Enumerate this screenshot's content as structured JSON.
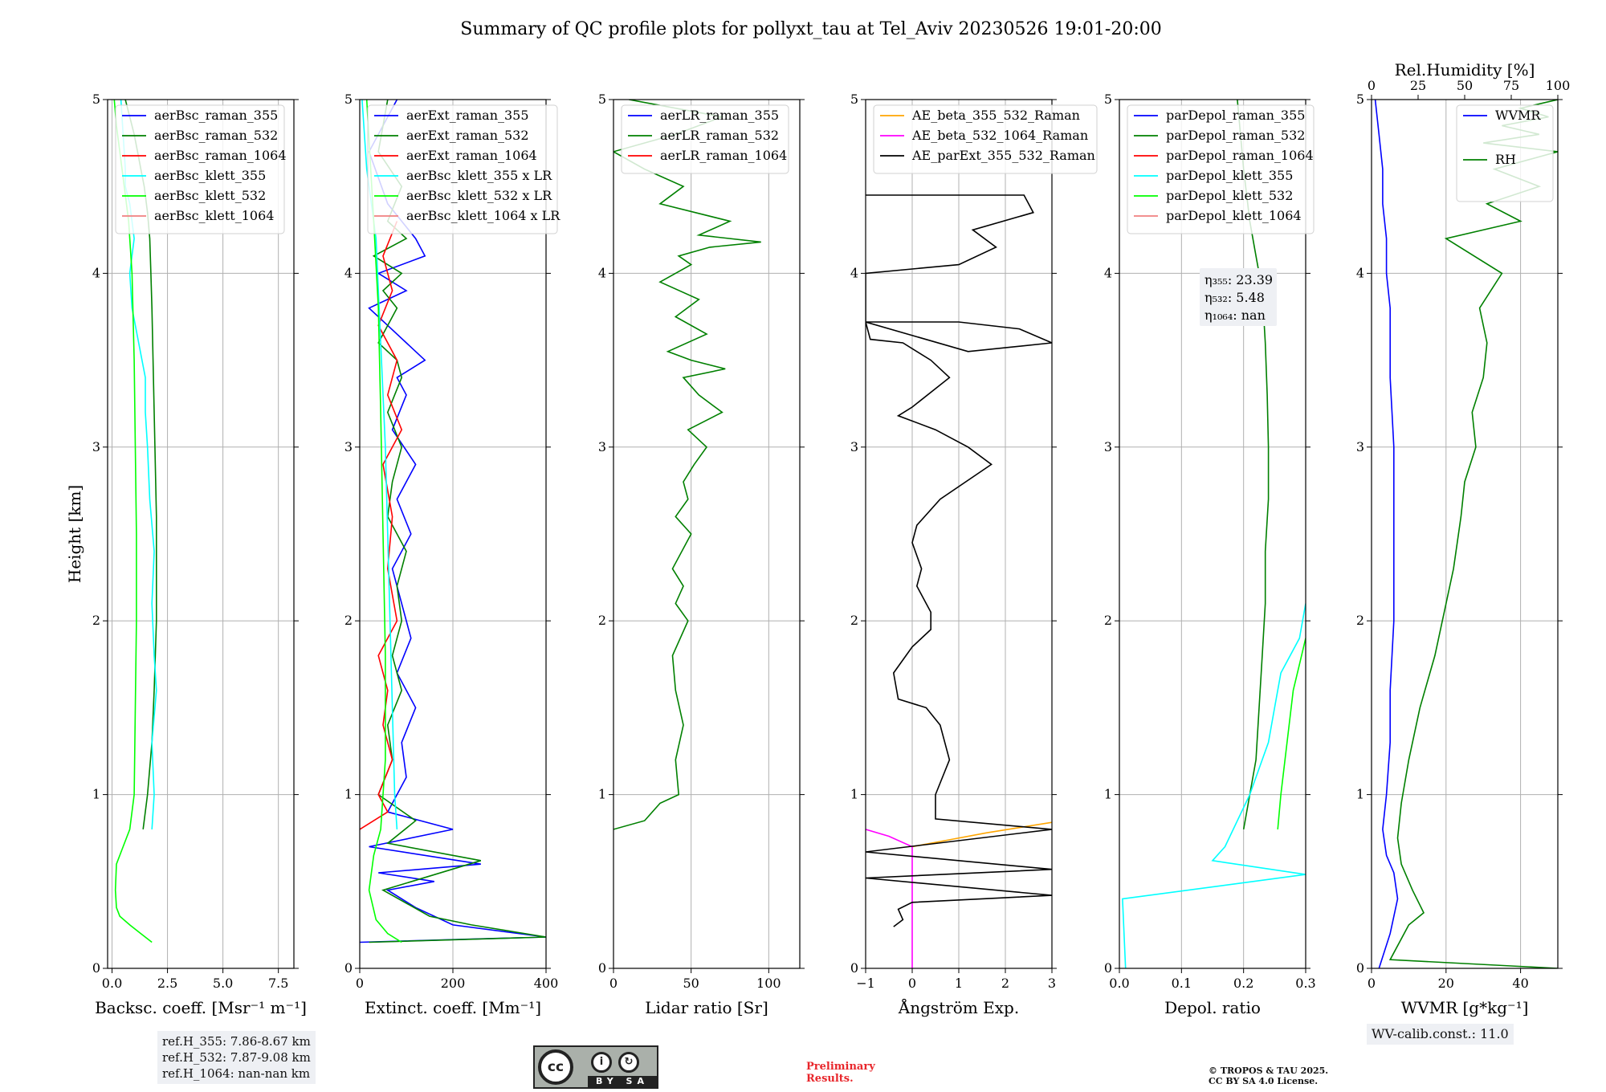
{
  "title": "Summary of QC profile plots for pollyxt_tau at Tel_Aviv 20230526 19:01-20:00",
  "chart_data": [
    {
      "type": "line",
      "name": "backscatter",
      "xlabel": "Backsc. coeff. [Msr⁻¹ m⁻¹]",
      "ylabel": "Height [km]",
      "xlim": [
        -0.2,
        8.2
      ],
      "ylim": [
        0,
        5
      ],
      "xticks": [
        0,
        2.5,
        5.0,
        7.5
      ],
      "xtick_labels": [
        "0.0",
        "2.5",
        "5.0",
        "7.5"
      ],
      "yticks": [
        0,
        1,
        2,
        3,
        4,
        5
      ],
      "grid": true,
      "legend_position": "top",
      "series": [
        {
          "name": "aerBsc_raman_355",
          "color": "#0000ff",
          "x": [],
          "y": []
        },
        {
          "name": "aerBsc_raman_532",
          "color": "#008000",
          "x": [
            1.4,
            1.6,
            1.8,
            1.9,
            2.0,
            2.0,
            2.0,
            1.95,
            1.9,
            1.85,
            1.8,
            1.75,
            1.7,
            1.6,
            1.45,
            1.3,
            1.15,
            1.0,
            0.8,
            0.6
          ],
          "y": [
            0.8,
            1.0,
            1.3,
            1.6,
            2.0,
            2.3,
            2.6,
            2.9,
            3.2,
            3.5,
            3.8,
            4.0,
            4.2,
            4.35,
            4.5,
            4.6,
            4.7,
            4.8,
            4.9,
            5.0
          ]
        },
        {
          "name": "aerBsc_raman_1064",
          "color": "#ff0000",
          "x": [],
          "y": []
        },
        {
          "name": "aerBsc_klett_355",
          "color": "#00ffff",
          "x": [
            1.8,
            1.9,
            1.8,
            2.0,
            1.9,
            1.8,
            1.9,
            1.7,
            1.6,
            1.5,
            1.5,
            1.2,
            0.9,
            0.8,
            1.0,
            0.8,
            0.6,
            0.6,
            0.5,
            0.4
          ],
          "y": [
            0.8,
            1.0,
            1.3,
            1.6,
            1.8,
            2.1,
            2.4,
            2.7,
            3.0,
            3.2,
            3.4,
            3.6,
            3.8,
            4.0,
            4.2,
            4.4,
            4.5,
            4.6,
            4.8,
            5.0
          ]
        },
        {
          "name": "aerBsc_klett_532",
          "color": "#00ff00",
          "x": [
            1.8,
            1.3,
            0.8,
            0.35,
            0.2,
            0.15,
            0.2,
            0.5,
            0.8,
            1.0,
            1.05,
            1.1,
            1.1,
            1.05,
            1.0,
            0.9,
            0.75,
            0.55,
            0.35,
            0.2,
            0.1
          ],
          "y": [
            0.15,
            0.2,
            0.25,
            0.3,
            0.35,
            0.45,
            0.6,
            0.7,
            0.8,
            1.0,
            1.5,
            2.0,
            2.5,
            3.0,
            3.5,
            4.0,
            4.3,
            4.5,
            4.7,
            4.85,
            5.0
          ]
        },
        {
          "name": "aerBsc_klett_1064",
          "color": "#f08080",
          "x": [],
          "y": []
        }
      ]
    },
    {
      "type": "line",
      "name": "extinction",
      "xlabel": "Extinct. coeff. [Mm⁻¹]",
      "xlim": [
        0,
        400
      ],
      "ylim": [
        0,
        5
      ],
      "xticks": [
        0,
        200,
        400
      ],
      "xtick_labels": [
        "0",
        "200",
        "400"
      ],
      "yticks": [
        0,
        1,
        2,
        3,
        4,
        5
      ],
      "grid": true,
      "legend_position": "top",
      "series": [
        {
          "name": "aerExt_raman_355",
          "color": "#0000ff",
          "x": [
            0,
            400,
            200,
            120,
            60,
            160,
            40,
            260,
            20,
            200,
            60,
            80,
            100,
            90,
            120,
            80,
            110,
            90,
            70,
            110,
            80,
            120,
            70,
            100,
            80,
            140,
            60,
            20,
            100,
            40,
            140,
            120,
            60,
            20,
            80
          ],
          "y": [
            0.15,
            0.18,
            0.25,
            0.35,
            0.45,
            0.5,
            0.55,
            0.6,
            0.7,
            0.8,
            0.9,
            1.0,
            1.1,
            1.3,
            1.5,
            1.7,
            1.9,
            2.1,
            2.3,
            2.5,
            2.7,
            2.9,
            3.1,
            3.3,
            3.4,
            3.5,
            3.7,
            3.8,
            3.9,
            4.0,
            4.1,
            4.2,
            4.4,
            4.7,
            5.0
          ]
        },
        {
          "name": "aerExt_raman_532",
          "color": "#008000",
          "x": [
            20,
            400,
            240,
            150,
            50,
            260,
            60,
            120,
            40,
            70,
            60,
            90,
            70,
            90,
            80,
            100,
            60,
            70,
            90,
            60,
            90,
            80,
            40,
            80,
            50,
            90,
            30,
            100,
            60,
            90,
            40,
            60
          ],
          "y": [
            0.15,
            0.18,
            0.25,
            0.3,
            0.45,
            0.62,
            0.72,
            0.85,
            1.0,
            1.2,
            1.4,
            1.6,
            1.8,
            2.0,
            2.2,
            2.4,
            2.6,
            2.8,
            3.0,
            3.2,
            3.4,
            3.5,
            3.6,
            3.8,
            3.9,
            4.0,
            4.1,
            4.2,
            4.3,
            4.5,
            4.7,
            5.0
          ]
        },
        {
          "name": "aerExt_raman_1064",
          "color": "#ff0000",
          "x": [
            0,
            60,
            40,
            70,
            50,
            60,
            40,
            80,
            60,
            70,
            50,
            90,
            60,
            80,
            40,
            70,
            50,
            80
          ],
          "y": [
            0.8,
            0.9,
            1.0,
            1.2,
            1.4,
            1.6,
            1.8,
            2.0,
            2.3,
            2.6,
            2.9,
            3.1,
            3.3,
            3.5,
            3.7,
            3.9,
            4.1,
            4.3
          ]
        },
        {
          "name": "aerBsc_klett_355 x LR",
          "color": "#00ffff",
          "x": [
            80,
            75,
            70,
            65,
            60,
            55,
            50,
            45,
            40,
            35,
            25,
            15,
            5
          ],
          "y": [
            0.8,
            1.0,
            1.5,
            2.0,
            2.5,
            3.0,
            3.3,
            3.6,
            3.9,
            4.2,
            4.4,
            4.6,
            5.0
          ]
        },
        {
          "name": "aerBsc_klett_532 x LR",
          "color": "#00ff00",
          "x": [
            90,
            60,
            35,
            20,
            30,
            45,
            55,
            55,
            50,
            45,
            40,
            30,
            15
          ],
          "y": [
            0.15,
            0.2,
            0.28,
            0.45,
            0.65,
            0.8,
            1.2,
            1.8,
            2.5,
            3.2,
            3.8,
            4.3,
            5.0
          ]
        },
        {
          "name": "aerBsc_klett_1064 x LR",
          "color": "#f08080",
          "x": [],
          "y": []
        }
      ]
    },
    {
      "type": "line",
      "name": "lidar_ratio",
      "xlabel": "Lidar ratio [Sr]",
      "xlim": [
        0,
        120
      ],
      "ylim": [
        0,
        5
      ],
      "xticks": [
        0,
        50,
        100
      ],
      "xtick_labels": [
        "0",
        "50",
        "100"
      ],
      "yticks": [
        0,
        1,
        2,
        3,
        4,
        5
      ],
      "grid": true,
      "legend_position": "top",
      "series": [
        {
          "name": "aerLR_raman_355",
          "color": "#0000ff",
          "x": [],
          "y": []
        },
        {
          "name": "aerLR_raman_532",
          "color": "#008000",
          "x": [
            0,
            20,
            30,
            42,
            40,
            45,
            40,
            38,
            48,
            40,
            45,
            38,
            50,
            40,
            48,
            45,
            52,
            60,
            48,
            70,
            55,
            45,
            72,
            50,
            35,
            60,
            40,
            55,
            30,
            50,
            42,
            62,
            95,
            55,
            75,
            30,
            45,
            20,
            0,
            40,
            70,
            10
          ],
          "y": [
            0.8,
            0.85,
            0.95,
            1.0,
            1.2,
            1.4,
            1.6,
            1.8,
            2.0,
            2.1,
            2.2,
            2.3,
            2.5,
            2.6,
            2.7,
            2.8,
            2.9,
            3.0,
            3.1,
            3.2,
            3.3,
            3.4,
            3.45,
            3.5,
            3.55,
            3.65,
            3.75,
            3.85,
            3.95,
            4.05,
            4.1,
            4.15,
            4.18,
            4.22,
            4.3,
            4.4,
            4.5,
            4.6,
            4.7,
            4.8,
            4.9,
            5.0
          ]
        },
        {
          "name": "aerLR_raman_1064",
          "color": "#ff0000",
          "x": [],
          "y": []
        }
      ]
    },
    {
      "type": "line",
      "name": "angstrom",
      "xlabel": "Ångström Exp.",
      "xlim": [
        -1,
        3
      ],
      "ylim": [
        0,
        5
      ],
      "xticks": [
        -1,
        0,
        1,
        2,
        3
      ],
      "xtick_labels": [
        "−1",
        "0",
        "1",
        "2",
        "3"
      ],
      "yticks": [
        0,
        1,
        2,
        3,
        4,
        5
      ],
      "grid": true,
      "legend_position": "top",
      "series": [
        {
          "name": "AE_beta_355_532_Raman",
          "color": "#ffa500",
          "x": [
            0,
            0.8,
            1.6,
            2.3,
            3.0
          ],
          "y": [
            0.7,
            0.74,
            0.78,
            0.81,
            0.84
          ]
        },
        {
          "name": "AE_beta_532_1064_Raman",
          "color": "#ff00ff",
          "x": [
            -1,
            -0.5,
            0,
            0,
            0
          ],
          "y": [
            0.8,
            0.76,
            0.7,
            0.3,
            0.0
          ]
        },
        {
          "name": "AE_parExt_355_532_Raman",
          "color": "#000000",
          "x": [
            -0.4,
            -0.2,
            -0.3,
            0.0,
            3.0,
            -1.0,
            3.0,
            -1.0,
            3.0,
            0.5,
            0.5,
            0.8,
            0.6,
            0.3,
            -0.3,
            -0.4,
            0.0,
            0.4,
            0.4,
            0.3,
            0.1,
            0.2,
            0.0,
            0.1,
            0.6,
            1.7,
            1.2,
            0.5,
            -0.3,
            0.0,
            0.8,
            0.4,
            -0.2,
            -0.9,
            -1.0,
            1.0,
            2.3,
            3.0,
            1.2,
            -1.0,
            -1.0,
            1.0,
            1.8,
            1.3,
            2.6,
            2.4,
            -1.0
          ],
          "y": [
            0.24,
            0.28,
            0.34,
            0.38,
            0.42,
            0.52,
            0.57,
            0.67,
            0.8,
            0.86,
            1.0,
            1.2,
            1.4,
            1.5,
            1.55,
            1.7,
            1.85,
            1.95,
            2.05,
            2.1,
            2.2,
            2.3,
            2.45,
            2.55,
            2.7,
            2.9,
            3.0,
            3.1,
            3.18,
            3.23,
            3.4,
            3.5,
            3.6,
            3.62,
            3.72,
            3.72,
            3.68,
            3.6,
            3.55,
            3.72,
            4.0,
            4.05,
            4.15,
            4.25,
            4.35,
            4.45,
            4.45
          ]
        }
      ]
    },
    {
      "type": "line",
      "name": "depol",
      "xlabel": "Depol. ratio",
      "xlim": [
        0,
        0.3
      ],
      "ylim": [
        0,
        5
      ],
      "xticks": [
        0,
        0.1,
        0.2,
        0.3
      ],
      "xtick_labels": [
        "0.0",
        "0.1",
        "0.2",
        "0.3"
      ],
      "yticks": [
        0,
        1,
        2,
        3,
        4,
        5
      ],
      "grid": true,
      "legend_position": "top",
      "annotation": [
        "η₃₅₅: 23.39",
        "η₅₃₂: 5.48",
        "η₁₀₆₄: nan"
      ],
      "series": [
        {
          "name": "parDepol_raman_355",
          "color": "#0000ff",
          "x": [],
          "y": []
        },
        {
          "name": "parDepol_raman_532",
          "color": "#008000",
          "x": [
            0.2,
            0.21,
            0.22,
            0.225,
            0.23,
            0.235,
            0.235,
            0.24,
            0.24,
            0.238,
            0.235,
            0.23,
            0.22,
            0.21,
            0.2,
            0.19
          ],
          "y": [
            0.8,
            1.0,
            1.2,
            1.5,
            1.8,
            2.1,
            2.4,
            2.7,
            3.0,
            3.3,
            3.6,
            3.9,
            4.1,
            4.3,
            4.6,
            5.0
          ]
        },
        {
          "name": "parDepol_raman_1064",
          "color": "#ff0000",
          "x": [],
          "y": []
        },
        {
          "name": "parDepol_klett_355",
          "color": "#00ffff",
          "x": [
            0.01,
            0.005,
            0.3,
            0.15,
            0.17,
            0.21,
            0.24,
            0.25,
            0.26,
            0.29,
            0.3
          ],
          "y": [
            0.0,
            0.4,
            0.54,
            0.62,
            0.7,
            1.0,
            1.3,
            1.5,
            1.7,
            1.9,
            2.1
          ]
        },
        {
          "name": "parDepol_klett_532",
          "color": "#00ff00",
          "x": [
            0.255,
            0.26,
            0.27,
            0.28,
            0.29,
            0.3
          ],
          "y": [
            0.8,
            1.0,
            1.3,
            1.6,
            1.75,
            1.9
          ]
        },
        {
          "name": "parDepol_klett_1064",
          "color": "#f08080",
          "x": [],
          "y": []
        }
      ]
    },
    {
      "type": "line",
      "name": "wvmr",
      "xlabel": "WVMR [g*kg⁻¹]",
      "xlabel_top": "Rel.Humidity [%]",
      "xlim": [
        0,
        50
      ],
      "xlim_top": [
        0,
        100
      ],
      "ylim": [
        0,
        5
      ],
      "xticks": [
        0,
        20,
        40
      ],
      "xtick_labels": [
        "0",
        "20",
        "40"
      ],
      "xticks_top": [
        0,
        25,
        50,
        75,
        100
      ],
      "xtick_labels_top": [
        "0",
        "25",
        "50",
        "75",
        "100"
      ],
      "yticks": [
        0,
        1,
        2,
        3,
        4,
        5
      ],
      "grid": true,
      "legend_position": "top-right",
      "series": [
        {
          "name": "WVMR",
          "color": "#0000ff",
          "axis": "bottom",
          "x": [
            2,
            5,
            7,
            6,
            4,
            3,
            4,
            5,
            5,
            6,
            6,
            6,
            5,
            5,
            4,
            4,
            3,
            3,
            2,
            1
          ],
          "y": [
            0.0,
            0.2,
            0.4,
            0.55,
            0.65,
            0.8,
            1.0,
            1.3,
            1.6,
            2.0,
            2.5,
            3.0,
            3.4,
            3.8,
            4.0,
            4.2,
            4.4,
            4.6,
            4.8,
            5.0
          ]
        },
        {
          "name": "RH",
          "color": "#008000",
          "axis": "top",
          "x": [
            100,
            10,
            20,
            28,
            22,
            16,
            14,
            16,
            20,
            26,
            34,
            38,
            44,
            48,
            50,
            56,
            54,
            60,
            62,
            58,
            70,
            40,
            80,
            62,
            90,
            66,
            100,
            60,
            90,
            70,
            95,
            80,
            100
          ],
          "y": [
            0.0,
            0.05,
            0.25,
            0.32,
            0.45,
            0.6,
            0.75,
            0.95,
            1.2,
            1.5,
            1.8,
            2.0,
            2.3,
            2.6,
            2.8,
            3.0,
            3.2,
            3.4,
            3.6,
            3.8,
            4.0,
            4.2,
            4.3,
            4.4,
            4.5,
            4.6,
            4.7,
            4.75,
            4.8,
            4.85,
            4.9,
            4.95,
            5.0
          ]
        }
      ]
    }
  ],
  "footer": {
    "ref_h_355": "ref.H_355: 7.86-8.67 km",
    "ref_h_532": "ref.H_532: 7.87-9.08 km",
    "ref_h_1064": "ref.H_1064: nan-nan km",
    "wv_calib": "WV-calib.const.: 11.0",
    "preliminary_line1": "Preliminary",
    "preliminary_line2": "Results.",
    "copyright_line1": "© TROPOS & TAU 2025.",
    "copyright_line2": "CC BY SA 4.0 License.",
    "cc_logo_text": "BY SA",
    "cc_logo_label": "cc"
  }
}
